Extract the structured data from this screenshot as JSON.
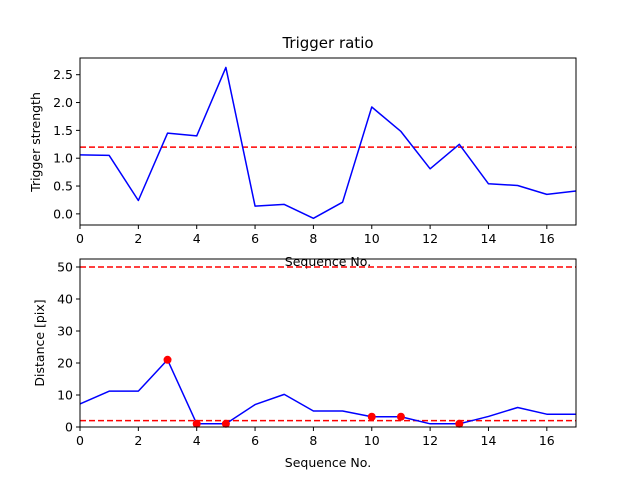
{
  "chart_data": [
    {
      "type": "line",
      "title": "Trigger ratio",
      "xlabel": "Sequence No.",
      "ylabel": "Trigger strength",
      "xlim": [
        0,
        17
      ],
      "ylim": [
        -0.2,
        2.8
      ],
      "xticks": [
        "0",
        "2",
        "4",
        "6",
        "8",
        "10",
        "12",
        "14",
        "16"
      ],
      "yticks": [
        "0.0",
        "0.5",
        "1.0",
        "1.5",
        "2.0",
        "2.5"
      ],
      "series": [
        {
          "color": "#0000ff",
          "style": "solid",
          "x": [
            0,
            1,
            2,
            3,
            4,
            5,
            6,
            7,
            8,
            9,
            10,
            11,
            12,
            13,
            14,
            15,
            16,
            17
          ],
          "y": [
            1.06,
            1.05,
            0.24,
            1.45,
            1.4,
            2.63,
            0.14,
            0.17,
            -0.08,
            0.21,
            1.92,
            1.48,
            0.81,
            1.25,
            0.54,
            0.51,
            0.35,
            0.41
          ]
        }
      ],
      "hlines": [
        {
          "y": 1.2,
          "color": "#ff0000",
          "style": "dashed"
        }
      ]
    },
    {
      "type": "line",
      "title": "",
      "xlabel": "Sequence No.",
      "ylabel": "Distance [pix]",
      "xlim": [
        0,
        17
      ],
      "ylim": [
        0,
        52.5
      ],
      "xticks": [
        "0",
        "2",
        "4",
        "6",
        "8",
        "10",
        "12",
        "14",
        "16"
      ],
      "yticks": [
        "0",
        "10",
        "20",
        "30",
        "40",
        "50"
      ],
      "series": [
        {
          "color": "#0000ff",
          "style": "solid",
          "x": [
            0,
            1,
            2,
            3,
            4,
            5,
            6,
            7,
            8,
            9,
            10,
            11,
            12,
            13,
            14,
            15,
            16,
            17
          ],
          "y": [
            7.2,
            11.2,
            11.2,
            21.0,
            1.0,
            1.0,
            7.0,
            10.2,
            5.0,
            5.0,
            3.2,
            3.2,
            1.0,
            1.0,
            3.3,
            6.1,
            4.0,
            4.0
          ]
        }
      ],
      "markers": {
        "color": "#ff0000",
        "x": [
          3,
          4,
          5,
          10,
          11,
          13
        ],
        "y": [
          21.0,
          1.0,
          1.0,
          3.2,
          3.2,
          1.0
        ]
      },
      "hlines": [
        {
          "y": 50,
          "color": "#ff0000",
          "style": "dashed"
        },
        {
          "y": 2,
          "color": "#ff0000",
          "style": "dashed"
        }
      ]
    }
  ]
}
